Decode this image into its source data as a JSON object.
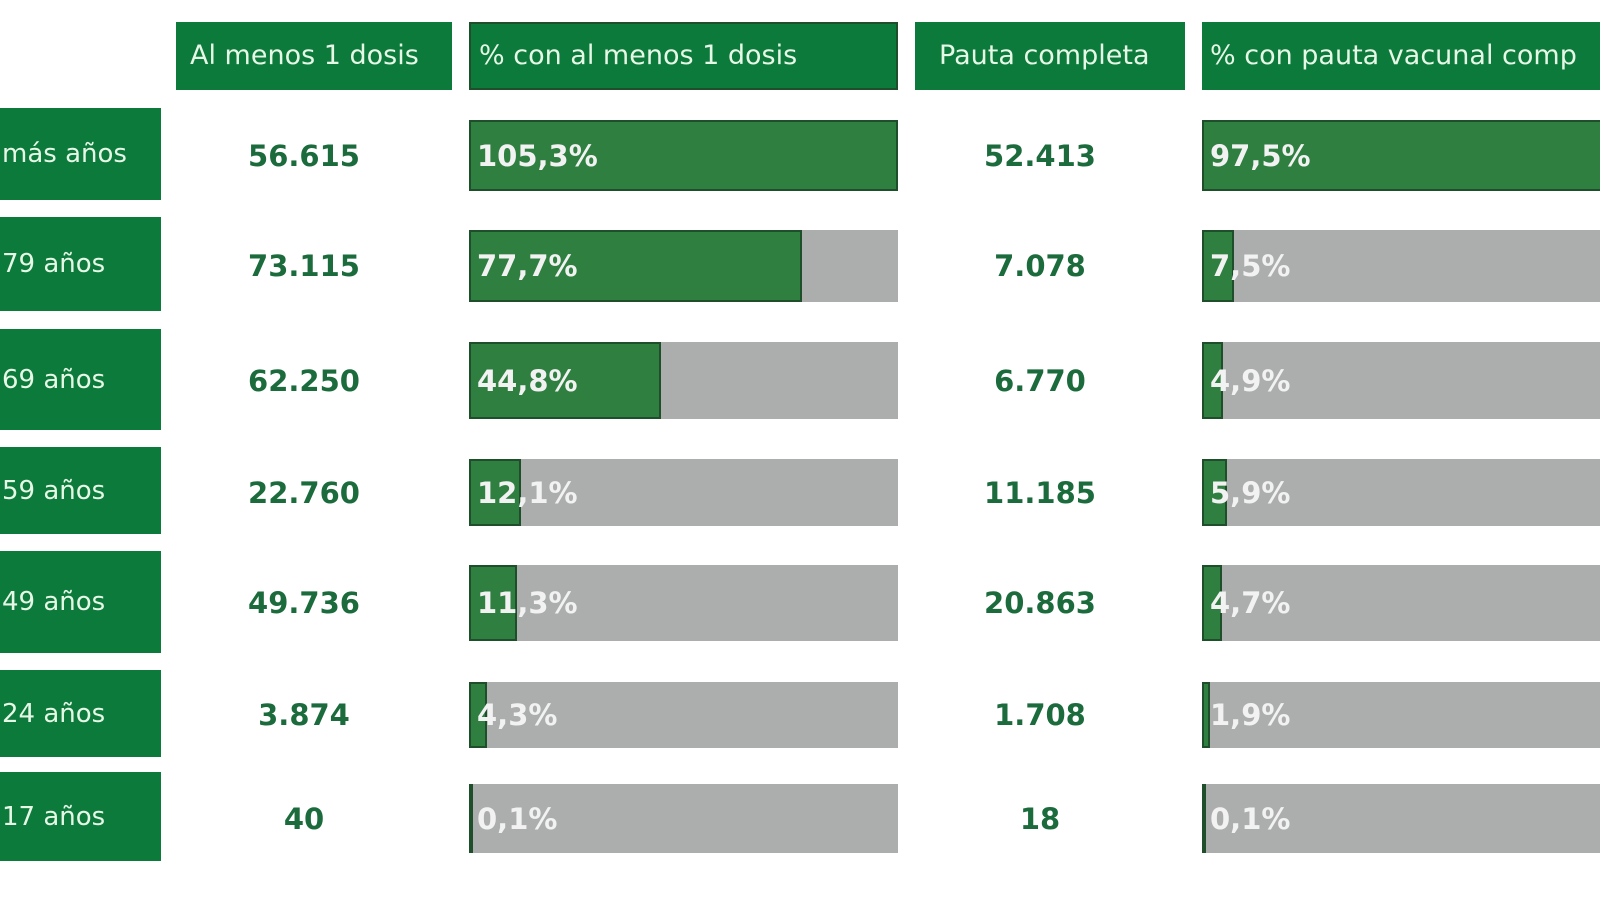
{
  "headers": {
    "col1": "Al menos 1 dosis",
    "col2": "% con al menos 1 dosis",
    "col3": "Pauta completa",
    "col4": "% con pauta vacunal comp"
  },
  "colors": {
    "header_green": "#0b7a3b",
    "bar_green": "#2f7f41",
    "bar_grey": "#acaeae",
    "number_green": "#1b6b3d"
  },
  "chart_data": {
    "type": "table",
    "columns": [
      "Al menos 1 dosis",
      "% con al menos 1 dosis",
      "Pauta completa",
      "% con pauta vacunal comp"
    ],
    "rows": [
      {
        "label": "más años",
        "al_menos_1": "56.615",
        "pct_1": 105.3,
        "pct_1_label": "105,3%",
        "completa": "52.413",
        "pct_c": 97.5,
        "pct_c_label": "97,5%"
      },
      {
        "label": "79 años",
        "al_menos_1": "73.115",
        "pct_1": 77.7,
        "pct_1_label": "77,7%",
        "completa": "7.078",
        "pct_c": 7.5,
        "pct_c_label": "7,5%"
      },
      {
        "label": "69 años",
        "al_menos_1": "62.250",
        "pct_1": 44.8,
        "pct_1_label": "44,8%",
        "completa": "6.770",
        "pct_c": 4.9,
        "pct_c_label": "4,9%"
      },
      {
        "label": "59 años",
        "al_menos_1": "22.760",
        "pct_1": 12.1,
        "pct_1_label": "12,1%",
        "completa": "11.185",
        "pct_c": 5.9,
        "pct_c_label": "5,9%"
      },
      {
        "label": "49 años",
        "al_menos_1": "49.736",
        "pct_1": 11.3,
        "pct_1_label": "11,3%",
        "completa": "20.863",
        "pct_c": 4.7,
        "pct_c_label": "4,7%"
      },
      {
        "label": "24 años",
        "al_menos_1": "3.874",
        "pct_1": 4.3,
        "pct_1_label": "4,3%",
        "completa": "1.708",
        "pct_c": 1.9,
        "pct_c_label": "1,9%"
      },
      {
        "label": "17 años",
        "al_menos_1": "40",
        "pct_1": 0.1,
        "pct_1_label": "0,1%",
        "completa": "18",
        "pct_c": 0.1,
        "pct_c_label": "0,1%"
      }
    ]
  }
}
